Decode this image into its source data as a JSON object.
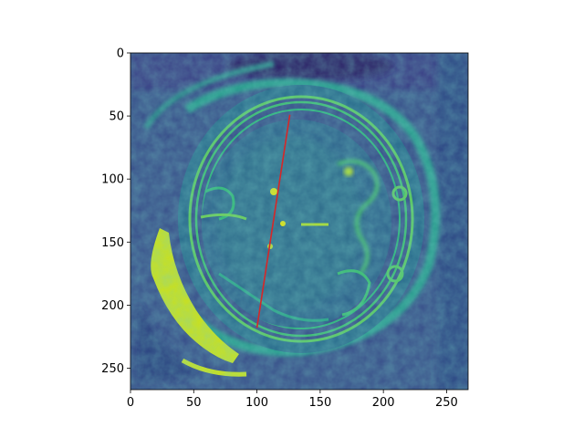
{
  "image": {
    "colormap": "viridis",
    "extent_x": [
      0,
      267
    ],
    "extent_y": [
      267,
      0
    ],
    "subject": "fetal brain MRI, axial slice"
  },
  "axes": {
    "x_ticks": [
      0,
      50,
      100,
      150,
      200,
      250
    ],
    "y_ticks": [
      0,
      50,
      100,
      150,
      200,
      250
    ]
  },
  "annotation": {
    "line_color": "#d62728",
    "x": [
      126,
      100
    ],
    "y": [
      49,
      218
    ]
  }
}
